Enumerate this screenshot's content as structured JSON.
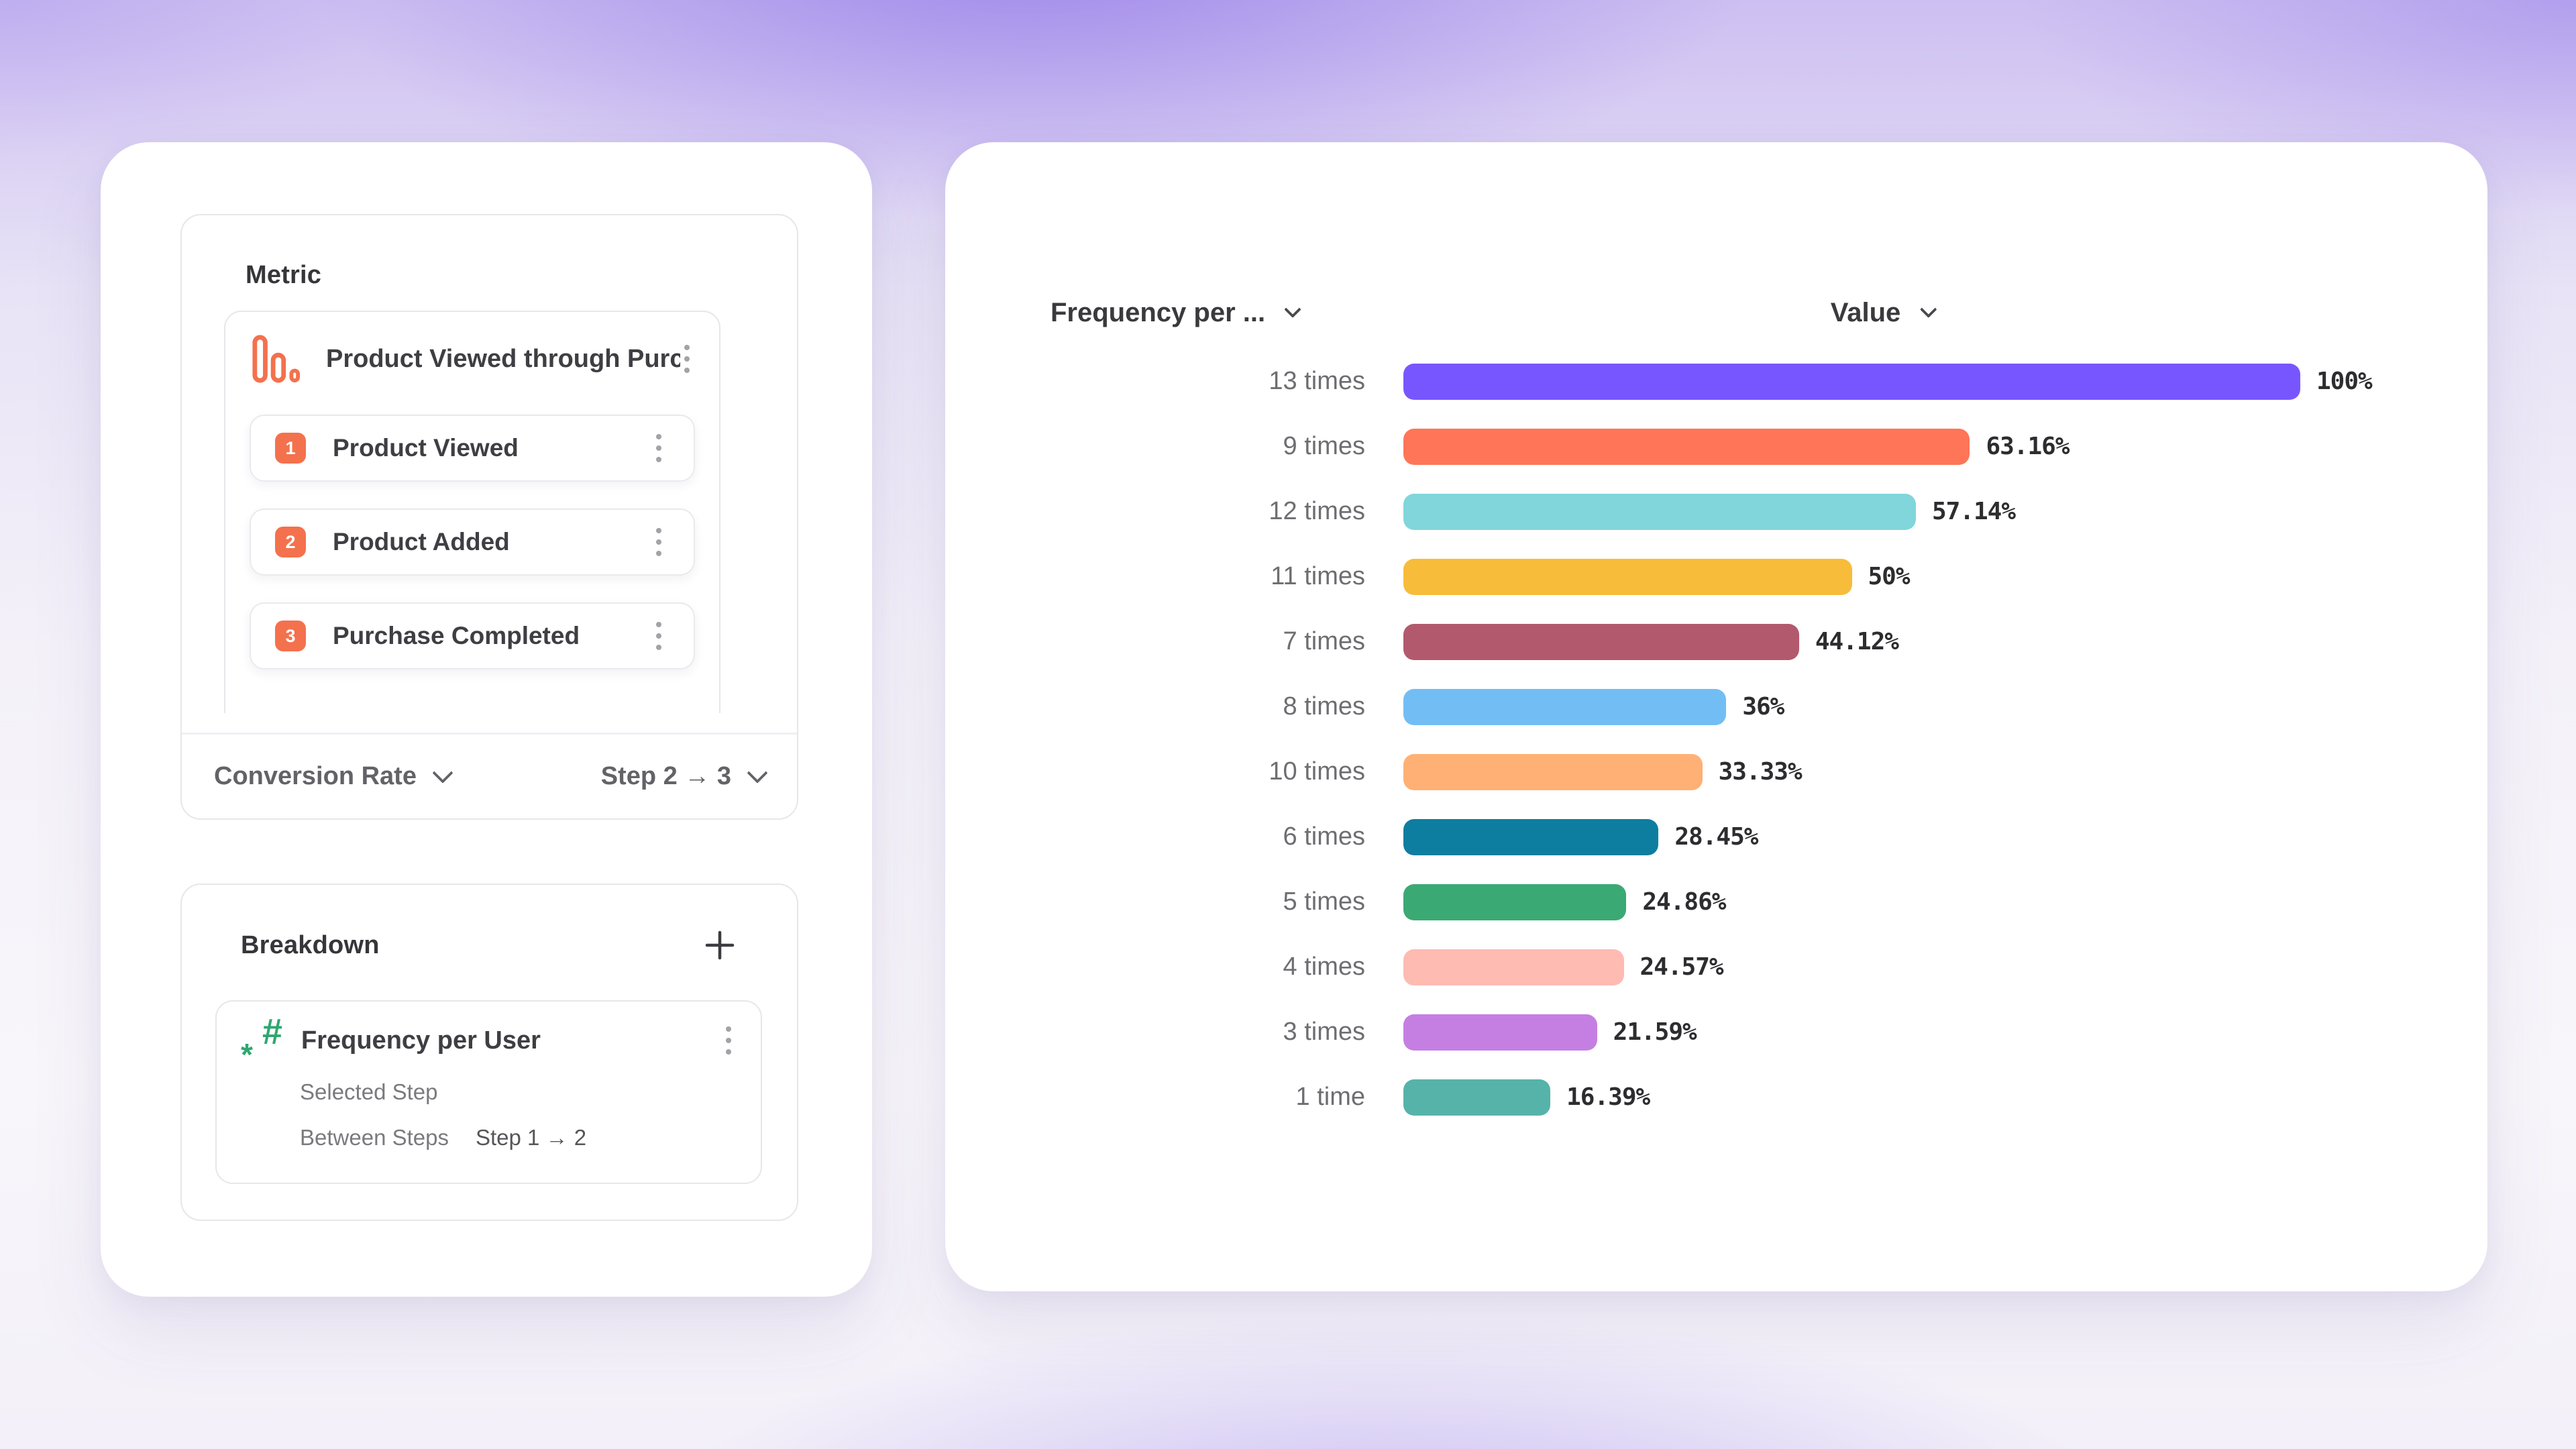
{
  "left_panel": {
    "metric": {
      "title": "Metric",
      "funnel": {
        "icon": "funnel-chart-icon",
        "name": "Product Viewed through Purch...",
        "steps": [
          {
            "num": "1",
            "label": "Product Viewed"
          },
          {
            "num": "2",
            "label": "Product Added"
          },
          {
            "num": "3",
            "label": "Purchase Completed"
          }
        ]
      },
      "measure": "Conversion Rate",
      "step_range": "Step 2 → 3"
    },
    "breakdown": {
      "title": "Breakdown",
      "add_button": "plus-icon",
      "item": {
        "icon": "hash-asterisk-icon",
        "hash_glyph": "#",
        "asterisk_glyph": "*",
        "name": "Frequency per User",
        "details": [
          {
            "label": "Selected Step",
            "value": ""
          },
          {
            "label": "Between Steps",
            "value": "Step 1 → 2"
          }
        ]
      }
    }
  },
  "chart": {
    "left_header": "Frequency per ...",
    "right_header": "Value"
  },
  "chart_data": {
    "type": "bar",
    "orientation": "horizontal",
    "title": "",
    "xlabel": "Value",
    "ylabel": "Frequency per User",
    "xlim": [
      0,
      100
    ],
    "grid": false,
    "legend": false,
    "categories": [
      "13 times",
      "9 times",
      "12 times",
      "11 times",
      "7 times",
      "8 times",
      "10 times",
      "6 times",
      "5 times",
      "4 times",
      "3 times",
      "1 time"
    ],
    "values": [
      100,
      63.16,
      57.14,
      50,
      44.12,
      36,
      33.33,
      28.45,
      24.86,
      24.57,
      21.59,
      16.39
    ],
    "value_labels": [
      "100%",
      "63.16%",
      "57.14%",
      "50%",
      "44.12%",
      "36%",
      "33.33%",
      "28.45%",
      "24.86%",
      "24.57%",
      "21.59%",
      "16.39%"
    ],
    "bar_colors": [
      "#7856FF",
      "#FF7557",
      "#80D6DB",
      "#F8BC3B",
      "#B2596E",
      "#72BEF4",
      "#FFB074",
      "#0D7EA0",
      "#3BA974",
      "#FEBBB2",
      "#C57FE3",
      "#56B3A9"
    ]
  },
  "icons": {
    "funnel": "funnel-chart-icon",
    "kebab": "kebab-menu-icon",
    "chevron": "chevron-down-icon",
    "plus": "plus-icon",
    "hash": "hash-asterisk-icon"
  },
  "colors": {
    "accent_coral": "#F4714D",
    "accent_green": "#2FA771",
    "text_dark": "#3A3A3E",
    "text_gray": "#6E6E72",
    "background_purple": "#B3A0EE"
  }
}
